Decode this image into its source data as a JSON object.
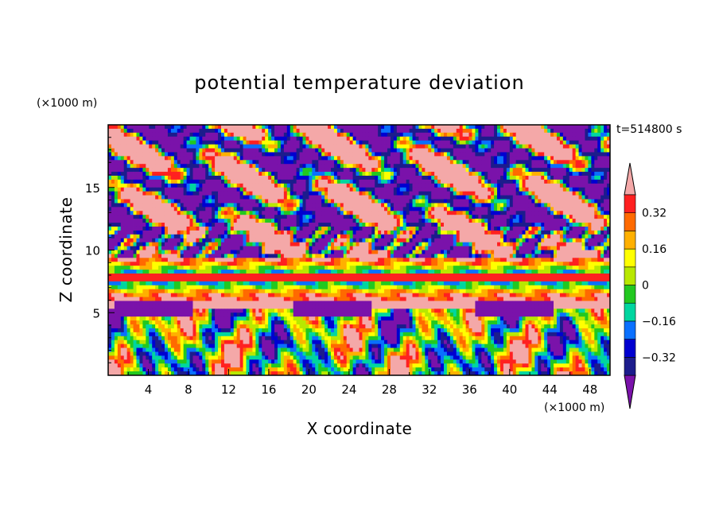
{
  "chart_data": {
    "type": "heatmap",
    "title": "potential temperature deviation",
    "time_label": "t=514800 s",
    "xlabel": "X coordinate",
    "ylabel": "Z coordinate",
    "x_unit": "(×1000 m)",
    "y_unit": "(×1000 m)",
    "xlim": [
      0,
      50
    ],
    "ylim": [
      0,
      20
    ],
    "x_ticks": [
      4,
      8,
      12,
      16,
      20,
      24,
      28,
      32,
      36,
      40,
      44,
      48
    ],
    "y_ticks": [
      5,
      10,
      15
    ],
    "x_tick_labels": [
      "4",
      "8",
      "12",
      "16",
      "20",
      "24",
      "28",
      "32",
      "36",
      "40",
      "44",
      "48"
    ],
    "y_tick_labels": [
      "5",
      "10",
      "15"
    ],
    "colorbar": {
      "levels": [
        -0.4,
        -0.32,
        -0.24,
        -0.16,
        -0.08,
        0,
        0.08,
        0.16,
        0.24,
        0.32,
        0.4
      ],
      "tick_values": [
        -0.32,
        -0.16,
        0,
        0.16,
        0.32
      ],
      "tick_labels": [
        "−0.32",
        "−0.16",
        "0",
        "0.16",
        "0.32"
      ],
      "colors": [
        "#7a12aa",
        "#1c1c8c",
        "#0000d0",
        "#0a70ff",
        "#00d6a0",
        "#22c820",
        "#b8e800",
        "#ffff00",
        "#ffb000",
        "#ff6a00",
        "#ff2020",
        "#f4a8a8"
      ],
      "extend": "both"
    }
  }
}
